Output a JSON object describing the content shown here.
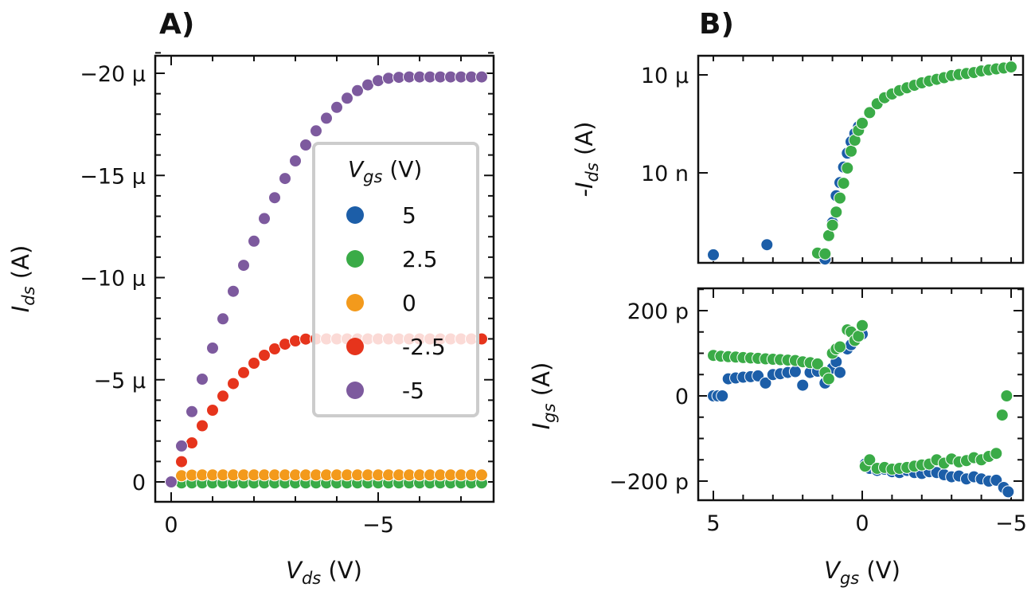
{
  "panel_labels": [
    "A)",
    "B)"
  ],
  "colors": {
    "5": "#1c5ea8",
    "2.5": "#3aab47",
    "0": "#f39a1c",
    "-2.5": "#e6341c",
    "-5": "#7d5a9e"
  },
  "chart_data": [
    {
      "type": "scatter",
      "panel": "A)",
      "xlabel": {
        "main": "V",
        "sub": "ds",
        "unit": " (V)"
      },
      "ylabel": {
        "main": "I",
        "sub": "ds",
        "unit": " (A)"
      },
      "xlim": [
        0.4,
        -7.8
      ],
      "ylim": [
        9e-07,
        -2.13e-05
      ],
      "x_ticks": [
        {
          "value": 0,
          "label": "0"
        },
        {
          "value": -5,
          "label": "−5"
        }
      ],
      "y_ticks": [
        {
          "value": 0,
          "label": "0"
        },
        {
          "value": -5e-06,
          "label": "−5 µ"
        },
        {
          "value": -1e-05,
          "label": "−10 µ"
        },
        {
          "value": -1.5e-05,
          "label": "−15 µ"
        },
        {
          "value": -2e-05,
          "label": "−20 µ"
        }
      ],
      "grid": false,
      "legend": {
        "title": {
          "main": "V",
          "sub": "gs",
          "unit": " (V)"
        },
        "placement": "center-right",
        "entries": [
          "5",
          "2.5",
          "0",
          "-2.5",
          "-5"
        ]
      },
      "x": [
        0,
        -0.25,
        -0.5,
        -0.75,
        -1,
        -1.25,
        -1.5,
        -1.75,
        -2,
        -2.25,
        -2.5,
        -2.75,
        -3,
        -3.25,
        -3.5,
        -3.75,
        -4,
        -4.25,
        -4.5,
        -4.75,
        -5,
        -5.25,
        -5.5,
        -5.75,
        -6,
        -6.25,
        -6.5,
        -6.75,
        -7,
        -7.25,
        -7.5
      ],
      "series": [
        {
          "name": "5",
          "values": [
            0,
            0,
            0,
            0,
            0,
            0,
            0,
            0,
            0,
            0,
            0,
            0,
            0,
            0,
            0,
            0,
            0,
            0,
            0,
            0,
            0,
            0,
            0,
            0,
            0,
            0,
            0,
            0,
            0,
            0,
            0
          ]
        },
        {
          "name": "2.5",
          "values": [
            0,
            5e-08,
            5e-08,
            5e-08,
            5e-08,
            5e-08,
            5e-08,
            5e-08,
            5e-08,
            5e-08,
            5e-08,
            5e-08,
            5e-08,
            5e-08,
            5e-08,
            5e-08,
            5e-08,
            5e-08,
            5e-08,
            5e-08,
            5e-08,
            5e-08,
            5e-08,
            5e-08,
            5e-08,
            5e-08,
            5e-08,
            5e-08,
            5e-08,
            5e-08,
            5e-08
          ]
        },
        {
          "name": "0",
          "values": [
            0,
            -3e-07,
            -3.3e-07,
            -3.4e-07,
            -3.4e-07,
            -3.4e-07,
            -3.4e-07,
            -3.4e-07,
            -3.4e-07,
            -3.4e-07,
            -3.4e-07,
            -3.4e-07,
            -3.4e-07,
            -3.4e-07,
            -3.4e-07,
            -3.4e-07,
            -3.4e-07,
            -3.4e-07,
            -3.4e-07,
            -3.4e-07,
            -3.4e-07,
            -3.4e-07,
            -3.4e-07,
            -3.4e-07,
            -3.4e-07,
            -3.4e-07,
            -3.4e-07,
            -3.4e-07,
            -3.4e-07,
            -3.4e-07,
            -3.4e-07
          ]
        },
        {
          "name": "-2.5",
          "values": [
            0,
            -9.9e-07,
            -1.91e-06,
            -2.75e-06,
            -3.51e-06,
            -4.2e-06,
            -4.81e-06,
            -5.35e-06,
            -5.81e-06,
            -6.2e-06,
            -6.51e-06,
            -6.74e-06,
            -6.9e-06,
            -6.99e-06,
            -7e-06,
            -7e-06,
            -7e-06,
            -7e-06,
            -7e-06,
            -7e-06,
            -7e-06,
            -7e-06,
            -7e-06,
            -7e-06,
            -7e-06,
            -7e-06,
            -7e-06,
            -7e-06,
            -7e-06,
            -7e-06,
            -7e-06
          ]
        },
        {
          "name": "-5",
          "values": [
            0,
            -1.76e-06,
            -3.44e-06,
            -5.03e-06,
            -6.55e-06,
            -7.98e-06,
            -9.33e-06,
            -1.06e-05,
            -1.178e-05,
            -1.289e-05,
            -1.391e-05,
            -1.485e-05,
            -1.571e-05,
            -1.649e-05,
            -1.718e-05,
            -1.78e-05,
            -1.833e-05,
            -1.878e-05,
            -1.915e-05,
            -1.943e-05,
            -1.964e-05,
            -1.976e-05,
            -1.98e-05,
            -1.982e-05,
            -1.982e-05,
            -1.982e-05,
            -1.982e-05,
            -1.982e-05,
            -1.982e-05,
            -1.982e-05,
            -1.982e-05
          ]
        }
      ]
    },
    {
      "type": "scatter",
      "panel": "B) top",
      "yscale": "log",
      "ylabel": {
        "main": "-I",
        "sub": "ds",
        "unit": " (A)"
      },
      "xlim": [
        5.5,
        -5.4
      ],
      "ylim": [
        1.7e-11,
        3.9e-05
      ],
      "y_ticks": [
        {
          "value": 1e-05,
          "label": "10 µ"
        },
        {
          "value": 1e-08,
          "label": "10 n"
        }
      ],
      "grid": false,
      "series": [
        {
          "name": "5",
          "x": [
            5,
            3.2,
            1.25,
            1.0,
            0.875,
            0.75,
            0.625,
            0.5,
            0.375,
            0.25,
            0.125,
            0,
            -0.25,
            -0.5,
            -1,
            -2,
            -3,
            -4,
            -5
          ],
          "values": [
            3.1e-11,
            6.3e-11,
            2.3e-11,
            3e-10,
            2e-09,
            5e-09,
            1.5e-08,
            4e-08,
            9e-08,
            1.6e-07,
            2.6e-07,
            3.5e-07,
            7e-07,
            1.3e-06,
            2.6e-06,
            5.7e-06,
            9.5e-06,
            1.32e-05,
            1.74e-05
          ]
        },
        {
          "name": "2.5",
          "x": [
            1.5,
            1.25,
            1.125,
            1.0,
            0.875,
            0.75,
            0.625,
            0.5,
            0.375,
            0.25,
            0.125,
            0,
            -0.25,
            -0.5,
            -0.75,
            -1,
            -1.25,
            -1.5,
            -1.75,
            -2,
            -2.25,
            -2.5,
            -2.75,
            -3,
            -3.25,
            -3.5,
            -3.75,
            -4,
            -4.25,
            -4.5,
            -4.75,
            -5
          ],
          "values": [
            3.5e-11,
            3.3e-11,
            1.2e-10,
            2.5e-10,
            6.3e-10,
            1.7e-09,
            4.8e-09,
            1.4e-08,
            4.6e-08,
            1e-07,
            2e-07,
            3.3e-07,
            7e-07,
            1.3e-06,
            2e-06,
            2.6e-06,
            3.3e-06,
            4e-06,
            4.8e-06,
            5.7e-06,
            6.5e-06,
            7.3e-06,
            8.2e-06,
            9.5e-06,
            1.03e-05,
            1.1e-05,
            1.18e-05,
            1.32e-05,
            1.42e-05,
            1.52e-05,
            1.62e-05,
            1.74e-05
          ]
        }
      ]
    },
    {
      "type": "scatter",
      "panel": "B) bottom",
      "xlabel": {
        "main": "V",
        "sub": "gs",
        "unit": " (V)"
      },
      "ylabel": {
        "main": "I",
        "sub": "gs",
        "unit": " (A)"
      },
      "xlim": [
        5.5,
        -5.4
      ],
      "ylim": [
        -2.45e-10,
        2.52e-10
      ],
      "x_ticks": [
        {
          "value": 5,
          "label": "5"
        },
        {
          "value": 0,
          "label": "0"
        },
        {
          "value": -5,
          "label": "−5"
        }
      ],
      "y_ticks": [
        {
          "value": 2e-10,
          "label": "200 p"
        },
        {
          "value": 0,
          "label": "0"
        },
        {
          "value": -2e-10,
          "label": "−200 p"
        }
      ],
      "grid": false,
      "series": [
        {
          "name": "5",
          "x": [
            5,
            4.85,
            4.7,
            4.5,
            4.25,
            4,
            3.75,
            3.5,
            3.25,
            3,
            2.75,
            2.5,
            2.25,
            2,
            1.75,
            1.5,
            1.25,
            1.0,
            0.875,
            0.75,
            0.5,
            0.375,
            0.25,
            0,
            -0.1,
            -0.25,
            -0.5,
            -0.75,
            -1,
            -1.25,
            -1.5,
            -1.75,
            -2,
            -2.25,
            -2.5,
            -2.75,
            -3,
            -3.25,
            -3.5,
            -3.75,
            -4,
            -4.25,
            -4.5,
            -4.75,
            -4.9
          ],
          "values": [
            0,
            0,
            0,
            4e-11,
            4.2e-11,
            4.4e-11,
            4.5e-11,
            4.7e-11,
            3e-11,
            5e-11,
            5.2e-11,
            5.5e-11,
            5.7e-11,
            2.5e-11,
            5.5e-11,
            5.8e-11,
            3e-11,
            6.5e-11,
            8e-11,
            5.5e-11,
            1.1e-10,
            1.2e-10,
            1.3e-10,
            1.45e-10,
            -1.6e-10,
            -1.7e-10,
            -1.75e-10,
            -1.72e-10,
            -1.78e-10,
            -1.8e-10,
            -1.75e-10,
            -1.8e-10,
            -1.82e-10,
            -1.78e-10,
            -1.8e-10,
            -1.85e-10,
            -1.9e-10,
            -1.88e-10,
            -1.95e-10,
            -1.9e-10,
            -1.95e-10,
            -2e-10,
            -1.98e-10,
            -2.15e-10,
            -2.25e-10
          ]
        },
        {
          "name": "2.5",
          "x": [
            5,
            4.75,
            4.5,
            4.25,
            4,
            3.75,
            3.5,
            3.25,
            3,
            2.75,
            2.5,
            2.25,
            2,
            1.75,
            1.5,
            1.25,
            1.125,
            1.0,
            0.875,
            0.75,
            0.5,
            0.375,
            0.25,
            0.125,
            0,
            -0.1,
            -0.25,
            -0.5,
            -0.75,
            -1,
            -1.25,
            -1.5,
            -1.75,
            -2,
            -2.25,
            -2.5,
            -2.75,
            -3,
            -3.25,
            -3.5,
            -3.75,
            -4,
            -4.25,
            -4.5,
            -4.7,
            -4.85
          ],
          "values": [
            9.5e-11,
            9.3e-11,
            9.2e-11,
            9.1e-11,
            9e-11,
            8.9e-11,
            8.8e-11,
            8.7e-11,
            8.6e-11,
            8.5e-11,
            8.4e-11,
            8.3e-11,
            8e-11,
            7.8e-11,
            7.5e-11,
            5.5e-11,
            4e-11,
            1e-10,
            1.1e-10,
            1.15e-10,
            1.55e-10,
            1.5e-10,
            1.3e-10,
            1.4e-10,
            1.65e-10,
            -1.65e-10,
            -1.5e-10,
            -1.7e-10,
            -1.68e-10,
            -1.72e-10,
            -1.7e-10,
            -1.68e-10,
            -1.65e-10,
            -1.62e-10,
            -1.6e-10,
            -1.5e-10,
            -1.58e-10,
            -1.48e-10,
            -1.55e-10,
            -1.52e-10,
            -1.45e-10,
            -1.5e-10,
            -1.42e-10,
            -1.35e-10,
            -4.5e-11,
            0
          ]
        }
      ]
    }
  ]
}
